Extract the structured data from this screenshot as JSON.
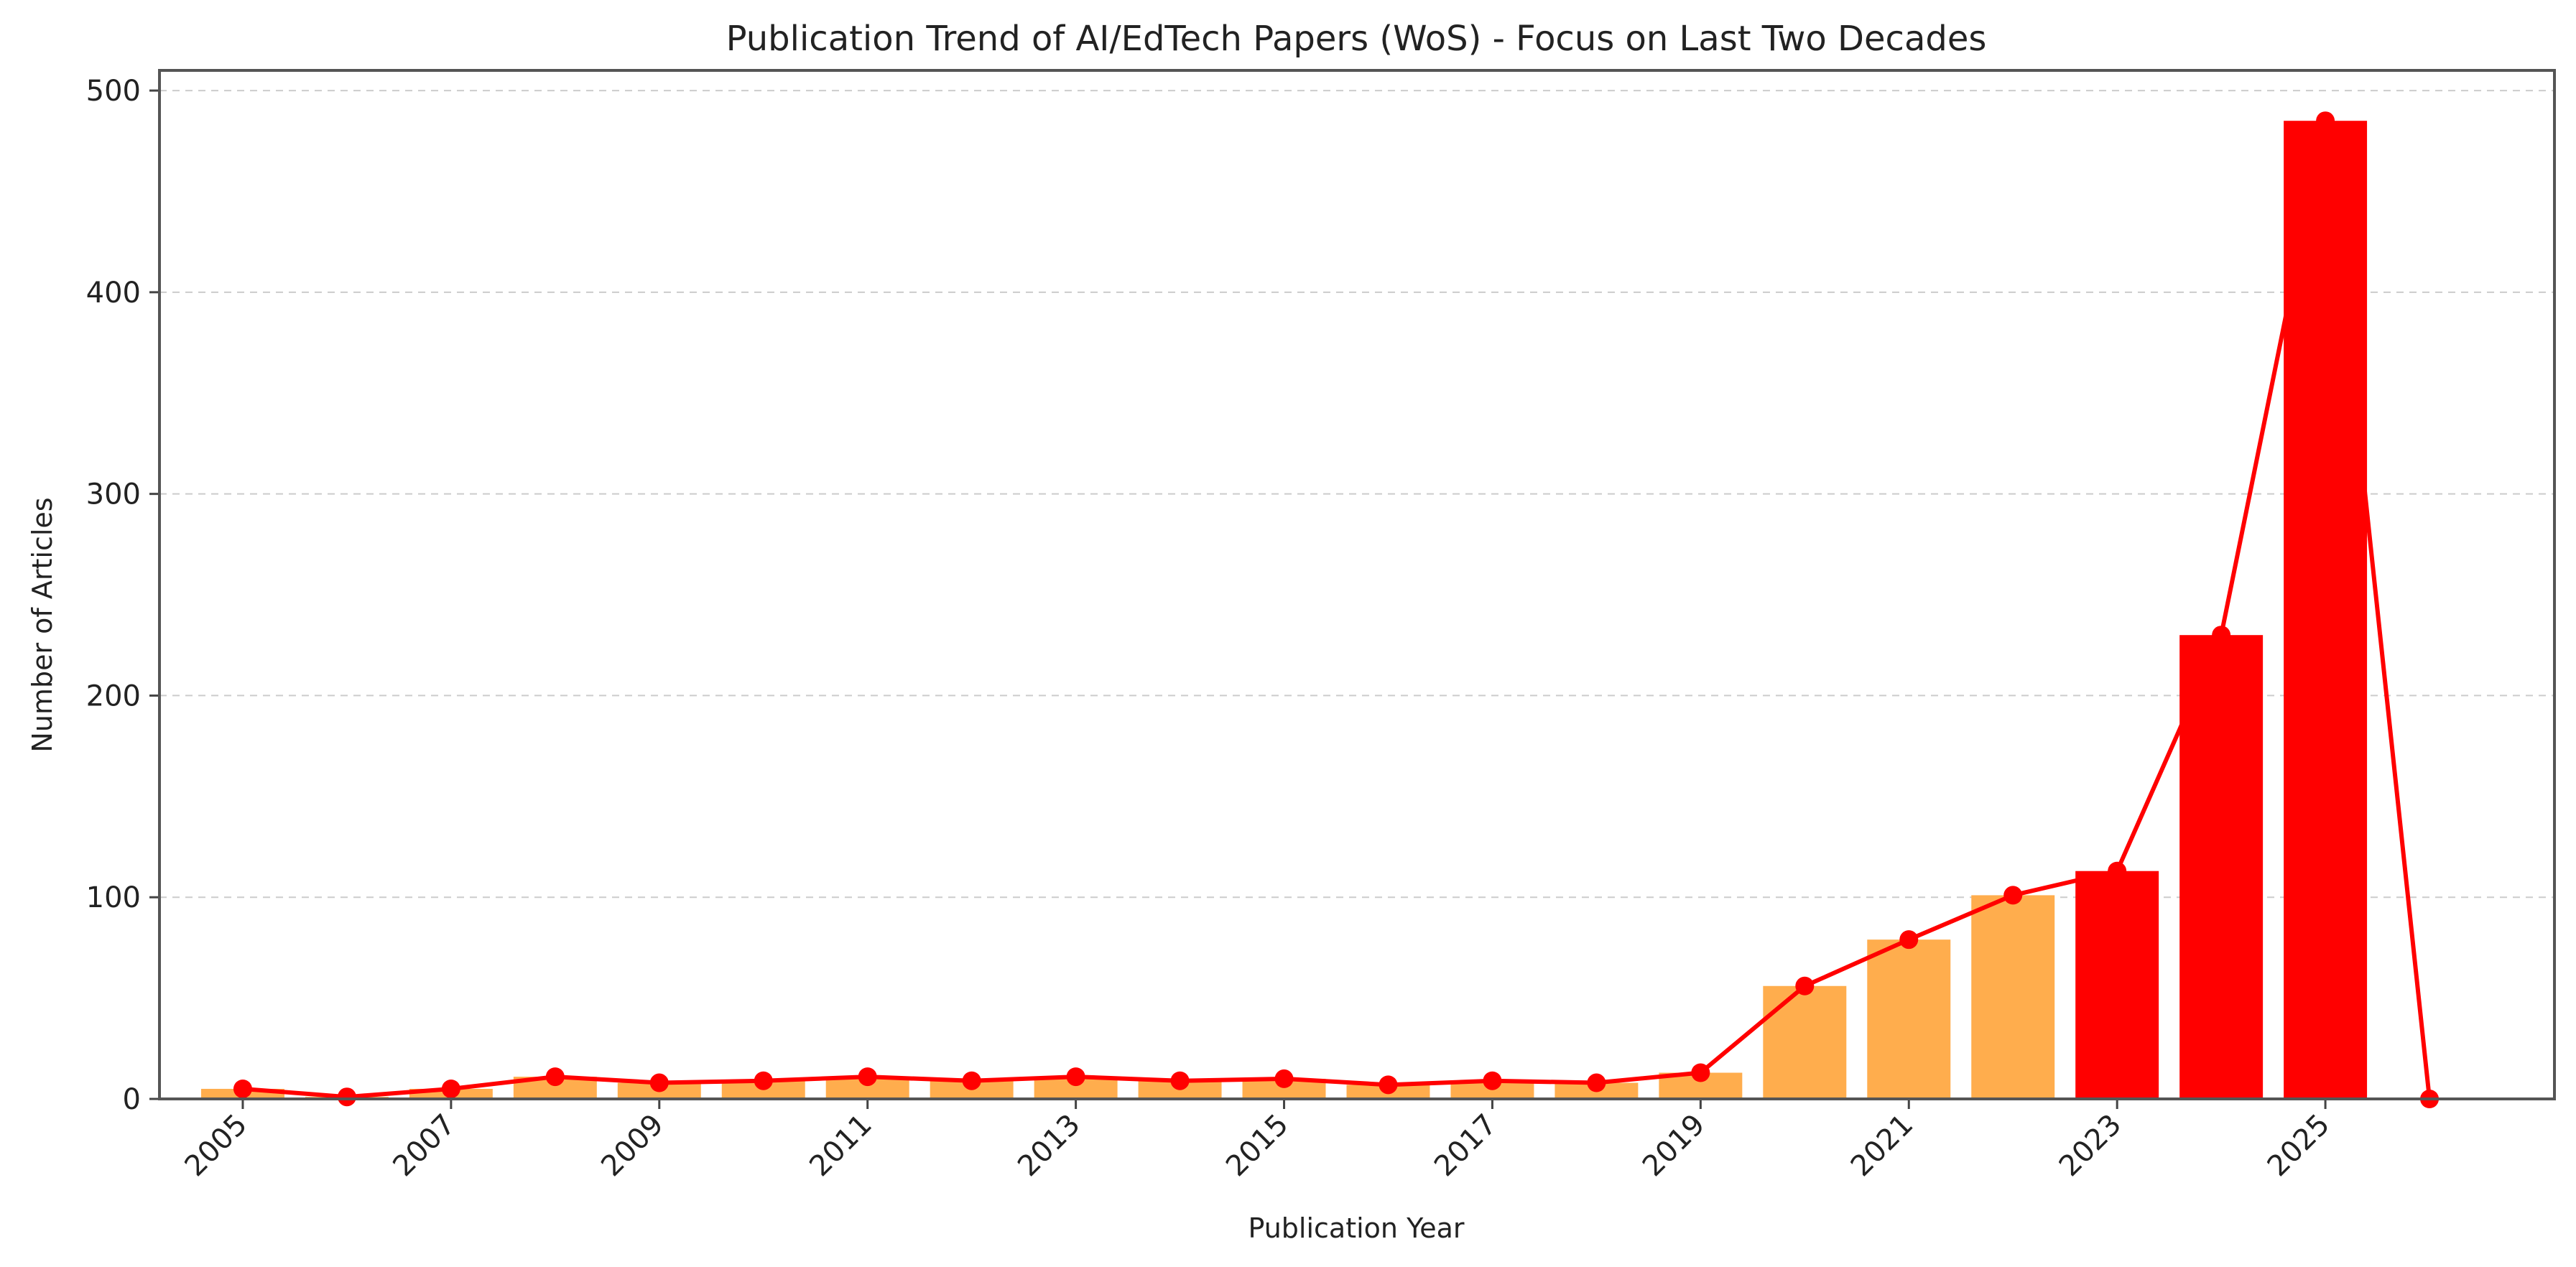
{
  "chart_data": {
    "type": "bar",
    "title": "Publication Trend of AI/EdTech Papers (WoS) - Focus on Last Two Decades",
    "xlabel": "Publication Year",
    "ylabel": "Number of Articles",
    "x": [
      2005,
      2006,
      2007,
      2008,
      2009,
      2010,
      2011,
      2012,
      2013,
      2014,
      2015,
      2016,
      2017,
      2018,
      2019,
      2020,
      2021,
      2022,
      2023,
      2024,
      2025,
      2026
    ],
    "values": [
      5,
      1,
      5,
      11,
      8,
      9,
      11,
      9,
      11,
      9,
      10,
      7,
      9,
      8,
      13,
      56,
      79,
      101,
      113,
      230,
      485,
      0
    ],
    "x_ticks": [
      "2005",
      "2007",
      "2009",
      "2011",
      "2013",
      "2015",
      "2017",
      "2019",
      "2021",
      "2023",
      "2025"
    ],
    "y_ticks": [
      "0",
      "100",
      "200",
      "300",
      "400",
      "500"
    ],
    "ylim": [
      0,
      510
    ],
    "xlim": [
      2004.2,
      2027.2
    ],
    "grid": "horizontal dashed",
    "overlay": "line with circular markers over the same values",
    "colors": {
      "bar_early": "#ffad4d",
      "bar_recent": "#ff0000",
      "line": "#ff0000",
      "marker": "#ff0000"
    },
    "recent_from_year": 2023
  }
}
